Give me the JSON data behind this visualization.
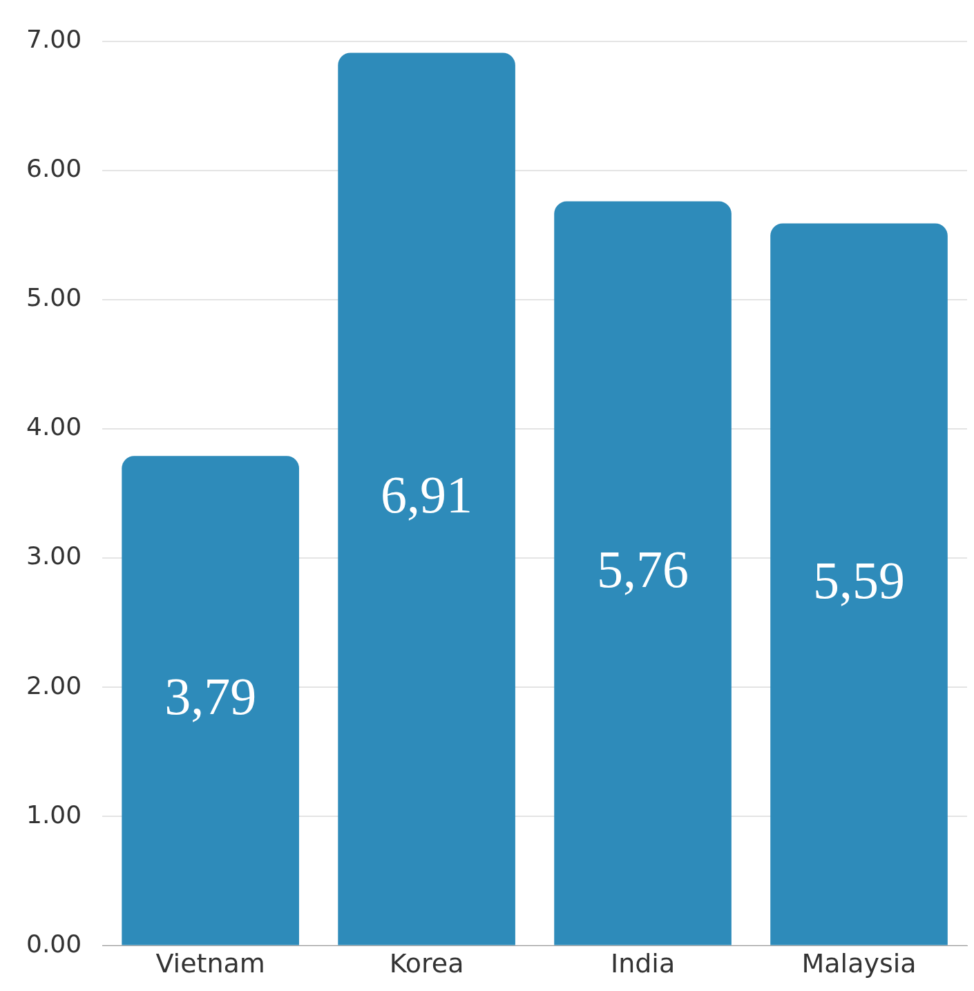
{
  "chart_data": {
    "type": "bar",
    "categories": [
      "Vietnam",
      "Korea",
      "India",
      "Malaysia"
    ],
    "values": [
      3.79,
      6.91,
      5.76,
      5.59
    ],
    "color": "#2e8bba",
    "value_labels": [
      "3,79",
      "6,91",
      "5,76",
      "5,59"
    ],
    "ylim": [
      0,
      7
    ],
    "yticks": [
      {
        "value": 0,
        "label": "0.00"
      },
      {
        "value": 1,
        "label": "1.00"
      },
      {
        "value": 2,
        "label": "2.00"
      },
      {
        "value": 3,
        "label": "3.00"
      },
      {
        "value": 4,
        "label": "4.00"
      },
      {
        "value": 5,
        "label": "5.00"
      },
      {
        "value": 6,
        "label": "6.00"
      },
      {
        "value": 7,
        "label": "7.00"
      }
    ],
    "grid": "y",
    "legend": false
  }
}
